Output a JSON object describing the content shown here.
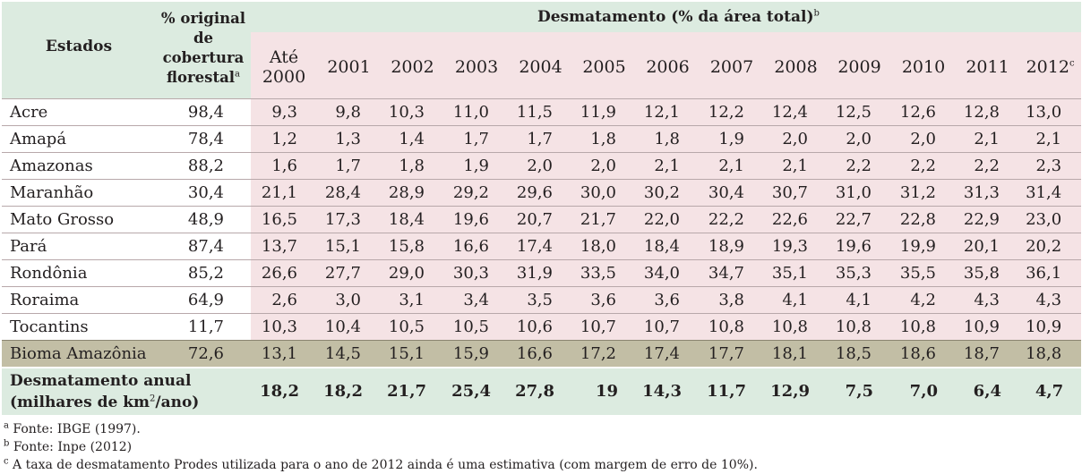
{
  "headers": {
    "estados": "Estados",
    "original_line1": "% original",
    "original_line2": "de",
    "original_line3": "cobertura",
    "original_line4": "florestal",
    "original_sup": "a",
    "group_title": "Desmatamento (% da área total)",
    "group_sup": "b",
    "year_first_line1": "Até",
    "year_first_line2": "2000",
    "years": [
      "2001",
      "2002",
      "2003",
      "2004",
      "2005",
      "2006",
      "2007",
      "2008",
      "2009",
      "2010",
      "2011",
      "2012"
    ],
    "last_year_sup": "c"
  },
  "rows": [
    {
      "state": "Acre",
      "original": "98,4",
      "values": [
        "9,3",
        "9,8",
        "10,3",
        "11,0",
        "11,5",
        "11,9",
        "12,1",
        "12,2",
        "12,4",
        "12,5",
        "12,6",
        "12,8",
        "13,0"
      ]
    },
    {
      "state": "Amapá",
      "original": "78,4",
      "values": [
        "1,2",
        "1,3",
        "1,4",
        "1,7",
        "1,7",
        "1,8",
        "1,8",
        "1,9",
        "2,0",
        "2,0",
        "2,0",
        "2,1",
        "2,1"
      ]
    },
    {
      "state": "Amazonas",
      "original": "88,2",
      "values": [
        "1,6",
        "1,7",
        "1,8",
        "1,9",
        "2,0",
        "2,0",
        "2,1",
        "2,1",
        "2,1",
        "2,2",
        "2,2",
        "2,2",
        "2,3"
      ]
    },
    {
      "state": "Maranhão",
      "original": "30,4",
      "values": [
        "21,1",
        "28,4",
        "28,9",
        "29,2",
        "29,6",
        "30,0",
        "30,2",
        "30,4",
        "30,7",
        "31,0",
        "31,2",
        "31,3",
        "31,4"
      ]
    },
    {
      "state": "Mato Grosso",
      "original": "48,9",
      "values": [
        "16,5",
        "17,3",
        "18,4",
        "19,6",
        "20,7",
        "21,7",
        "22,0",
        "22,2",
        "22,6",
        "22,7",
        "22,8",
        "22,9",
        "23,0"
      ]
    },
    {
      "state": "Pará",
      "original": "87,4",
      "values": [
        "13,7",
        "15,1",
        "15,8",
        "16,6",
        "17,4",
        "18,0",
        "18,4",
        "18,9",
        "19,3",
        "19,6",
        "19,9",
        "20,1",
        "20,2"
      ]
    },
    {
      "state": "Rondônia",
      "original": "85,2",
      "values": [
        "26,6",
        "27,7",
        "29,0",
        "30,3",
        "31,9",
        "33,5",
        "34,0",
        "34,7",
        "35,1",
        "35,3",
        "35,5",
        "35,8",
        "36,1"
      ]
    },
    {
      "state": "Roraima",
      "original": "64,9",
      "values": [
        "2,6",
        "3,0",
        "3,1",
        "3,4",
        "3,5",
        "3,6",
        "3,6",
        "3,8",
        "4,1",
        "4,1",
        "4,2",
        "4,3",
        "4,3"
      ]
    },
    {
      "state": "Tocantins",
      "original": "11,7",
      "values": [
        "10,3",
        "10,4",
        "10,5",
        "10,5",
        "10,6",
        "10,7",
        "10,7",
        "10,8",
        "10,8",
        "10,8",
        "10,8",
        "10,9",
        "10,9"
      ]
    }
  ],
  "bioma": {
    "state": "Bioma Amazônia",
    "original": "72,6",
    "values": [
      "13,1",
      "14,5",
      "15,1",
      "15,9",
      "16,6",
      "17,2",
      "17,4",
      "17,7",
      "18,1",
      "18,5",
      "18,6",
      "18,7",
      "18,8"
    ]
  },
  "annual": {
    "label_line1": "Desmatamento anual",
    "label_line2a": "(milhares de km",
    "label_sup": "2",
    "label_line2b": "/ano)",
    "values": [
      "18,2",
      "18,2",
      "21,7",
      "25,4",
      "27,8",
      "19",
      "14,3",
      "11,7",
      "12,9",
      "7,5",
      "7,0",
      "6,4",
      "4,7"
    ]
  },
  "notes": [
    {
      "sup": "a",
      "text": " Fonte: IBGE (1997)."
    },
    {
      "sup": "b",
      "text": " Fonte: Inpe (2012)"
    },
    {
      "sup": "c",
      "text": " A taxa de desmatamento Prodes utilizada para o ano de 2012 ainda é uma estimativa (com margem de erro de 10%)."
    }
  ]
}
